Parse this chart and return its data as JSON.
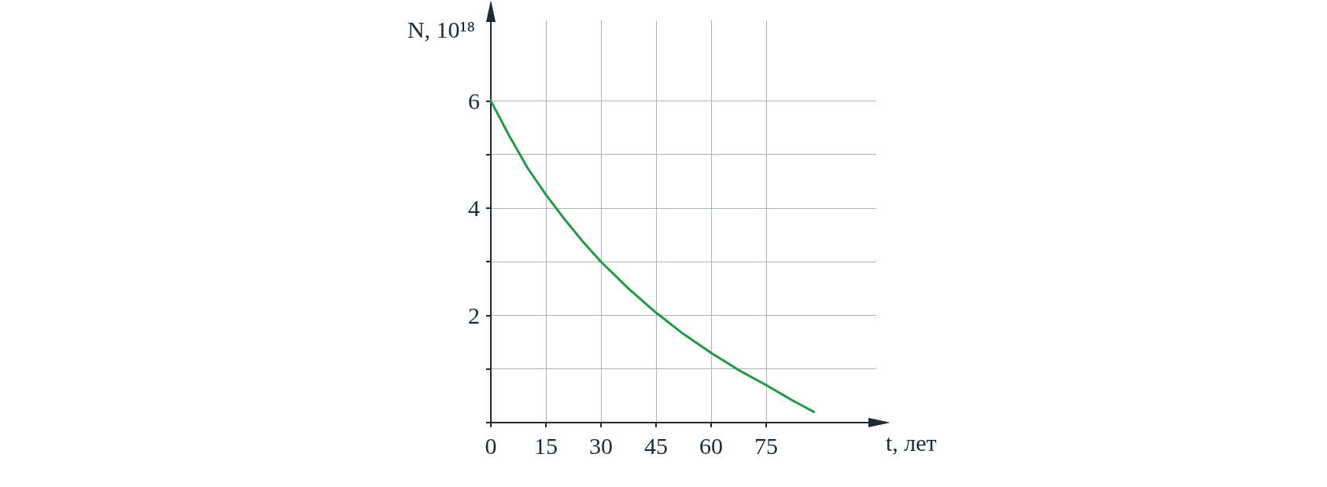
{
  "chart_data": {
    "type": "line",
    "xlabel": "t, лет",
    "ylabel": "N, 10¹⁸",
    "x": [
      0,
      5,
      10,
      15,
      20,
      25,
      30,
      37.5,
      45,
      52.5,
      60,
      67.5,
      75,
      82,
      88
    ],
    "series": [
      {
        "color": "#229a44",
        "values": [
          6,
          5.35,
          4.75,
          4.25,
          3.8,
          3.38,
          3.0,
          2.5,
          2.05,
          1.65,
          1.3,
          0.98,
          0.7,
          0.42,
          0.2
        ]
      }
    ],
    "xlim": [
      0,
      105
    ],
    "ylim": [
      0,
      7.5
    ],
    "xticks": [
      0,
      15,
      30,
      45,
      60,
      75
    ],
    "yticks": [
      {
        "value": 0,
        "label": null
      },
      {
        "value": 1,
        "label": null
      },
      2,
      {
        "value": 3,
        "label": null
      },
      4,
      {
        "value": 5,
        "label": null
      },
      6
    ],
    "grid": true,
    "marker": "none",
    "line_style": "solid"
  }
}
